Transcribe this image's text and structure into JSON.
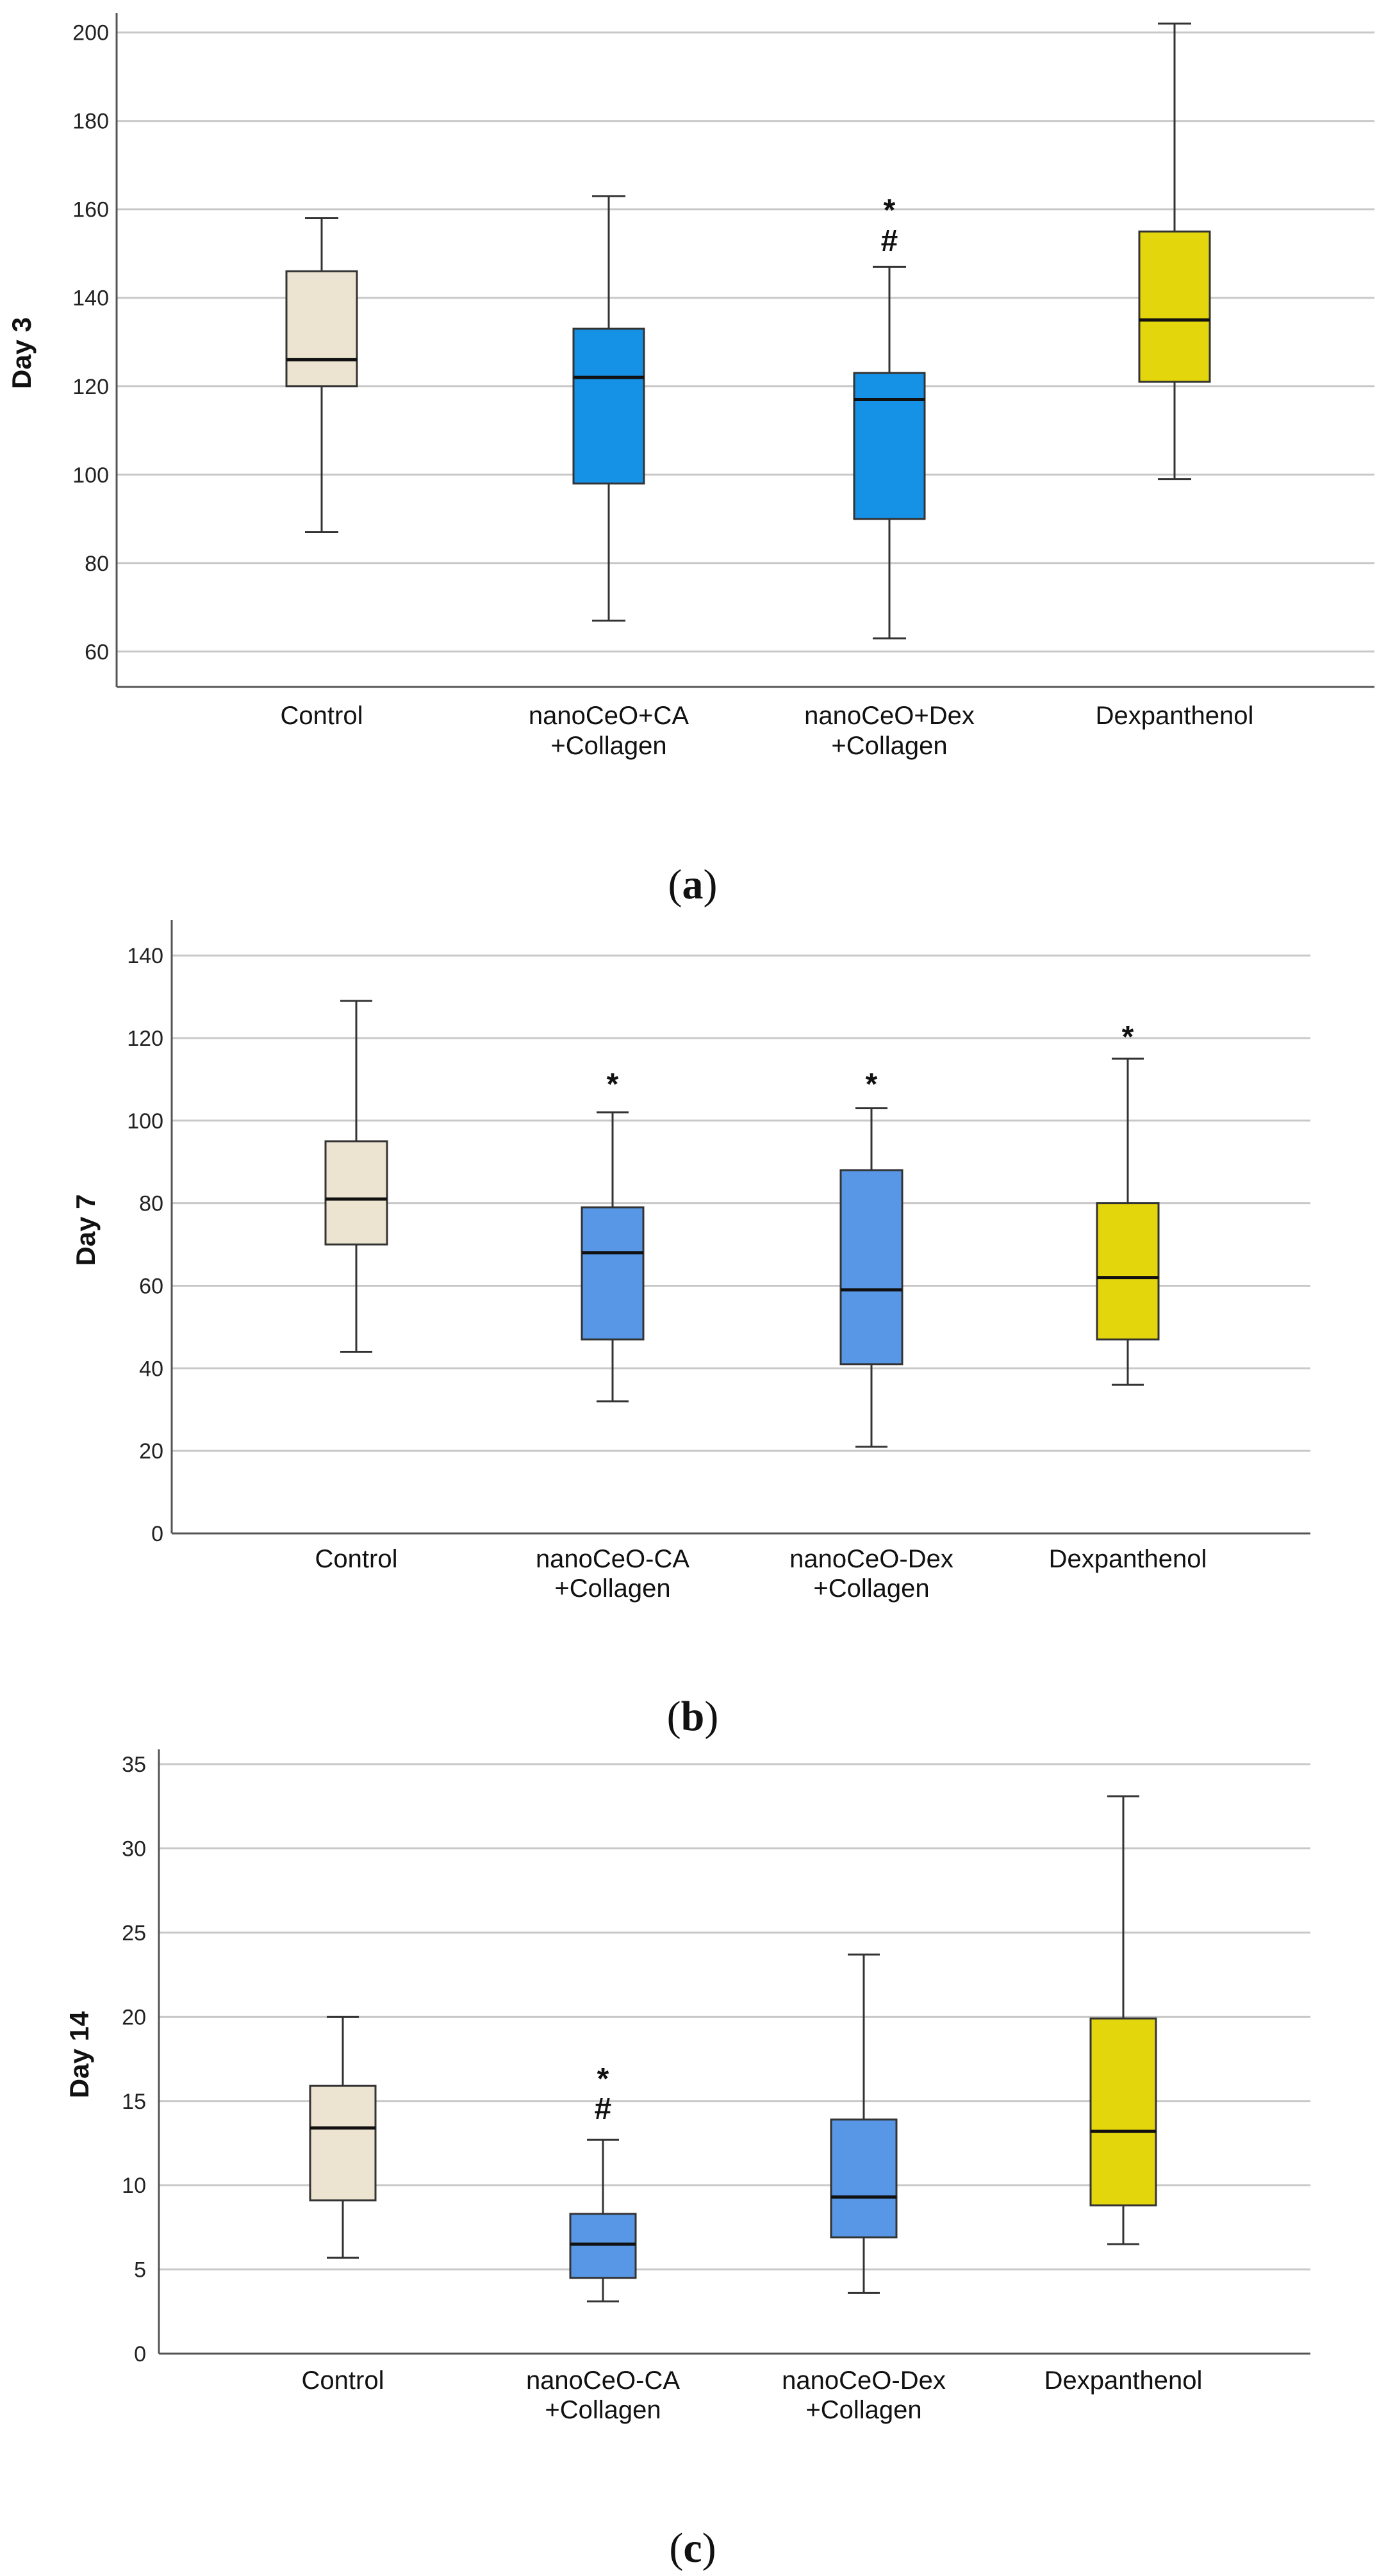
{
  "chart_data": [
    {
      "type": "boxplot",
      "ylabel": "Day 3",
      "ylim": [
        52,
        203
      ],
      "yticks": [
        60,
        80,
        100,
        120,
        140,
        160,
        180,
        200
      ],
      "grid": true,
      "caption": {
        "open": "(",
        "letter": "a",
        "close": ")"
      },
      "boxes": [
        {
          "label": [
            "Control"
          ],
          "whisker_low": 87,
          "q1": 120,
          "median": 126,
          "q3": 146,
          "whisker_high": 158,
          "color": "#ECE4D0",
          "annotations": []
        },
        {
          "label": [
            "nanoCeO+CA",
            "+Collagen"
          ],
          "whisker_low": 67,
          "q1": 98,
          "median": 122,
          "q3": 133,
          "whisker_high": 163,
          "color": "#1591E6",
          "annotations": []
        },
        {
          "label": [
            "nanoCeO+Dex",
            "+Collagen"
          ],
          "whisker_low": 63,
          "q1": 90,
          "median": 117,
          "q3": 123,
          "whisker_high": 147,
          "color": "#1591E6",
          "annotations": [
            "*",
            "#"
          ]
        },
        {
          "label": [
            "Dexpanthenol"
          ],
          "whisker_low": 99,
          "q1": 121,
          "median": 135,
          "q3": 155,
          "whisker_high": 202,
          "color": "#E4D60C",
          "annotations": []
        }
      ]
    },
    {
      "type": "boxplot",
      "ylabel": "Day 7",
      "ylim": [
        0,
        147
      ],
      "yticks": [
        0,
        20,
        40,
        60,
        80,
        100,
        120,
        140
      ],
      "grid": true,
      "caption": {
        "open": "(",
        "letter": "b",
        "close": ")"
      },
      "boxes": [
        {
          "label": [
            "Control"
          ],
          "whisker_low": 44,
          "q1": 70,
          "median": 81,
          "q3": 95,
          "whisker_high": 129,
          "color": "#ECE4D0",
          "annotations": []
        },
        {
          "label": [
            "nanoCeO-CA",
            "+Collagen"
          ],
          "whisker_low": 32,
          "q1": 47,
          "median": 68,
          "q3": 79,
          "whisker_high": 102,
          "color": "#5797E6",
          "annotations": [
            "*"
          ]
        },
        {
          "label": [
            "nanoCeO-Dex",
            "+Collagen"
          ],
          "whisker_low": 21,
          "q1": 41,
          "median": 59,
          "q3": 88,
          "whisker_high": 103,
          "color": "#5797E6",
          "annotations": [
            "*"
          ]
        },
        {
          "label": [
            "Dexpanthenol"
          ],
          "whisker_low": 36,
          "q1": 47,
          "median": 62,
          "q3": 80,
          "whisker_high": 115,
          "color": "#E4D60C",
          "annotations": [
            "*"
          ]
        }
      ]
    },
    {
      "type": "boxplot",
      "ylabel": "Day 14",
      "ylim": [
        0,
        35.5
      ],
      "yticks": [
        0,
        5,
        10,
        15,
        20,
        25,
        30,
        35
      ],
      "grid": true,
      "caption": {
        "open": "(",
        "letter": "c",
        "close": ")"
      },
      "boxes": [
        {
          "label": [
            "Control"
          ],
          "whisker_low": 5.7,
          "q1": 9.1,
          "median": 13.4,
          "q3": 15.9,
          "whisker_high": 20,
          "color": "#ECE4D0",
          "annotations": []
        },
        {
          "label": [
            "nanoCeO-CA",
            "+Collagen"
          ],
          "whisker_low": 3.1,
          "q1": 4.5,
          "median": 6.5,
          "q3": 8.3,
          "whisker_high": 12.7,
          "color": "#5797E6",
          "annotations": [
            "*",
            "#"
          ]
        },
        {
          "label": [
            "nanoCeO-Dex",
            "+Collagen"
          ],
          "whisker_low": 3.6,
          "q1": 6.9,
          "median": 9.3,
          "q3": 13.9,
          "whisker_high": 23.7,
          "color": "#5797E6",
          "annotations": []
        },
        {
          "label": [
            "Dexpanthenol"
          ],
          "whisker_low": 6.5,
          "q1": 8.8,
          "median": 13.2,
          "q3": 19.9,
          "whisker_high": 33.1,
          "color": "#E4D60C",
          "annotations": []
        }
      ]
    }
  ]
}
